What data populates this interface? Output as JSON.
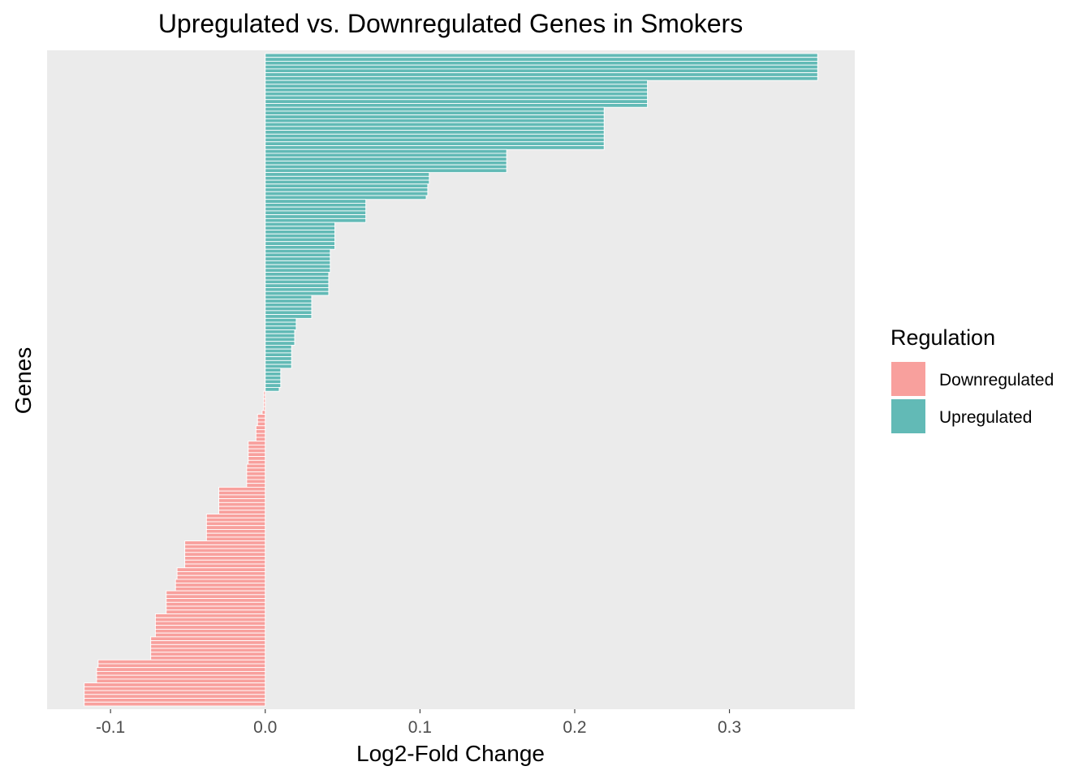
{
  "chart_data": {
    "type": "bar",
    "orientation": "horizontal",
    "title": "Upregulated vs. Downregulated Genes in Smokers",
    "xlabel": "Log2-Fold Change",
    "ylabel": "Genes",
    "xlim": [
      -0.141,
      0.381
    ],
    "xticks": [
      -0.1,
      0.0,
      0.1,
      0.2,
      0.3
    ],
    "xtick_labels": [
      "-0.1",
      "0.0",
      "0.1",
      "0.2",
      "0.3"
    ],
    "grid": false,
    "legend": {
      "title": "Regulation",
      "position": "right",
      "entries": [
        {
          "label": "Downregulated",
          "color": "#F8A09D"
        },
        {
          "label": "Upregulated",
          "color": "#62BAB6"
        }
      ]
    },
    "colors": {
      "Downregulated": "#F8A09D",
      "Upregulated": "#62BAB6",
      "panel": "#EBEBEB"
    },
    "series": [
      {
        "name": "Upregulated",
        "color": "#62BAB6",
        "values": [
          0.357,
          0.357,
          0.357,
          0.357,
          0.357,
          0.357,
          0.357,
          0.247,
          0.247,
          0.247,
          0.247,
          0.247,
          0.247,
          0.247,
          0.219,
          0.219,
          0.219,
          0.219,
          0.219,
          0.219,
          0.219,
          0.219,
          0.219,
          0.219,
          0.219,
          0.156,
          0.156,
          0.156,
          0.156,
          0.156,
          0.156,
          0.106,
          0.106,
          0.106,
          0.105,
          0.105,
          0.105,
          0.104,
          0.065,
          0.065,
          0.065,
          0.065,
          0.065,
          0.065,
          0.045,
          0.045,
          0.045,
          0.045,
          0.045,
          0.045,
          0.045,
          0.042,
          0.042,
          0.042,
          0.042,
          0.042,
          0.042,
          0.041,
          0.041,
          0.041,
          0.041,
          0.041,
          0.041,
          0.03,
          0.03,
          0.03,
          0.03,
          0.03,
          0.03,
          0.02,
          0.02,
          0.02,
          0.019,
          0.019,
          0.019,
          0.019,
          0.017,
          0.017,
          0.017,
          0.017,
          0.017,
          0.017,
          0.01,
          0.01,
          0.01,
          0.01,
          0.01,
          0.009
        ]
      },
      {
        "name": "Downregulated",
        "color": "#F8A09D",
        "values": [
          -0.001,
          -0.001,
          -0.001,
          -0.001,
          -0.001,
          -0.002,
          -0.005,
          -0.005,
          -0.005,
          -0.006,
          -0.006,
          -0.006,
          -0.006,
          -0.011,
          -0.011,
          -0.011,
          -0.011,
          -0.011,
          -0.011,
          -0.012,
          -0.012,
          -0.012,
          -0.012,
          -0.012,
          -0.012,
          -0.03,
          -0.03,
          -0.03,
          -0.03,
          -0.03,
          -0.03,
          -0.03,
          -0.038,
          -0.038,
          -0.038,
          -0.038,
          -0.038,
          -0.038,
          -0.038,
          -0.052,
          -0.052,
          -0.052,
          -0.052,
          -0.052,
          -0.052,
          -0.052,
          -0.057,
          -0.057,
          -0.057,
          -0.058,
          -0.058,
          -0.058,
          -0.064,
          -0.064,
          -0.064,
          -0.064,
          -0.064,
          -0.064,
          -0.071,
          -0.071,
          -0.071,
          -0.071,
          -0.071,
          -0.071,
          -0.074,
          -0.074,
          -0.074,
          -0.074,
          -0.074,
          -0.074,
          -0.108,
          -0.108,
          -0.109,
          -0.109,
          -0.109,
          -0.109,
          -0.117,
          -0.117,
          -0.117,
          -0.117,
          -0.117,
          -0.117
        ]
      }
    ]
  }
}
